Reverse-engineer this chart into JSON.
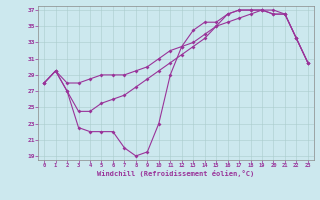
{
  "xlabel": "Windchill (Refroidissement éolien,°C)",
  "background_color": "#cce8ee",
  "line_color": "#993399",
  "xlim": [
    -0.5,
    23.5
  ],
  "ylim": [
    18.5,
    37.5
  ],
  "yticks": [
    19,
    21,
    23,
    25,
    27,
    29,
    31,
    33,
    35,
    37
  ],
  "xticks": [
    0,
    1,
    2,
    3,
    4,
    5,
    6,
    7,
    8,
    9,
    10,
    11,
    12,
    13,
    14,
    15,
    16,
    17,
    18,
    19,
    20,
    21,
    22,
    23
  ],
  "line1_x": [
    0,
    1,
    2,
    3,
    4,
    5,
    6,
    7,
    8,
    9,
    10,
    11,
    12,
    13,
    14,
    15,
    16,
    17,
    18,
    19,
    20,
    21,
    22,
    23
  ],
  "line1_y": [
    28.0,
    29.5,
    27.0,
    22.5,
    22.0,
    22.0,
    22.0,
    20.0,
    19.0,
    19.5,
    23.0,
    29.0,
    32.5,
    34.5,
    35.5,
    35.5,
    36.5,
    37.0,
    37.0,
    37.0,
    36.5,
    36.5,
    33.5,
    30.5
  ],
  "line2_x": [
    0,
    1,
    2,
    3,
    4,
    5,
    6,
    7,
    8,
    9,
    10,
    11,
    12,
    13,
    14,
    15,
    16,
    17,
    18,
    19,
    20,
    21,
    22,
    23
  ],
  "line2_y": [
    28.0,
    29.5,
    28.0,
    28.0,
    28.5,
    29.0,
    29.0,
    29.0,
    29.5,
    30.0,
    31.0,
    32.0,
    32.5,
    33.0,
    34.0,
    35.0,
    35.5,
    36.0,
    36.5,
    37.0,
    37.0,
    36.5,
    33.5,
    30.5
  ],
  "line3_x": [
    0,
    1,
    2,
    3,
    4,
    5,
    6,
    7,
    8,
    9,
    10,
    11,
    12,
    13,
    14,
    15,
    16,
    17,
    18,
    19,
    20,
    21,
    22,
    23
  ],
  "line3_y": [
    28.0,
    29.5,
    27.0,
    24.5,
    24.5,
    25.5,
    26.0,
    26.5,
    27.5,
    28.5,
    29.5,
    30.5,
    31.5,
    32.5,
    33.5,
    35.0,
    36.5,
    37.0,
    37.0,
    37.0,
    36.5,
    36.5,
    33.5,
    30.5
  ],
  "grid_color": "#aacccc",
  "spine_color": "#888888"
}
